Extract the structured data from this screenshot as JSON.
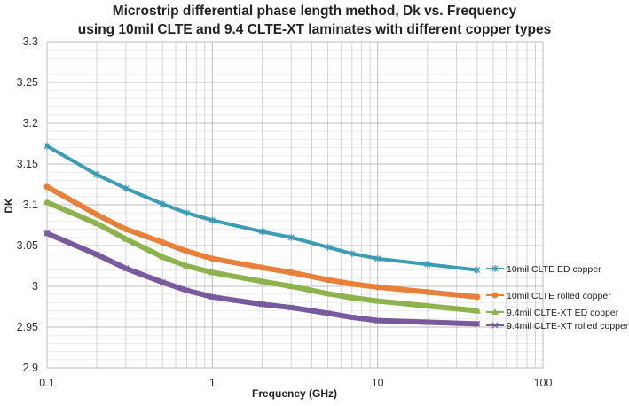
{
  "chart_data": {
    "type": "line",
    "title_line1": "Microstrip differential phase length method, Dk vs. Frequency",
    "title_line2": "using 10mil CLTE and 9.4 CLTE-XT laminates with different copper types",
    "xlabel": "Frequency (GHz)",
    "ylabel": "DK",
    "xscale": "log",
    "xlim": [
      0.1,
      100
    ],
    "ylim": [
      2.9,
      3.3
    ],
    "xticks": [
      "0.1",
      "1",
      "10",
      "100"
    ],
    "yticks": [
      "2.9",
      "2.95",
      "3",
      "3.05",
      "3.1",
      "3.15",
      "3.2",
      "3.25",
      "3.3"
    ],
    "grid": true,
    "legend_position": "right",
    "x": [
      0.1,
      0.2,
      0.3,
      0.5,
      0.7,
      1,
      2,
      3,
      5,
      7,
      10,
      20,
      40
    ],
    "series": [
      {
        "name": "10mil CLTE ED copper",
        "color": "#3a9cb6",
        "marker": "star",
        "values": [
          3.172,
          3.137,
          3.12,
          3.101,
          3.09,
          3.081,
          3.067,
          3.06,
          3.048,
          3.04,
          3.034,
          3.027,
          3.02
        ]
      },
      {
        "name": "10mil CLTE rolled copper",
        "color": "#e8803a",
        "marker": "circle",
        "values": [
          3.122,
          3.088,
          3.07,
          3.054,
          3.043,
          3.034,
          3.023,
          3.017,
          3.008,
          3.003,
          2.999,
          2.993,
          2.987
        ]
      },
      {
        "name": "9.4mil CLTE-XT ED copper",
        "color": "#8db34c",
        "marker": "triangle",
        "values": [
          3.103,
          3.077,
          3.058,
          3.036,
          3.025,
          3.017,
          3.006,
          3.0,
          2.991,
          2.986,
          2.982,
          2.976,
          2.97
        ]
      },
      {
        "name": "9.4mil CLTE-XT rolled copper",
        "color": "#7a5a9e",
        "marker": "x",
        "values": [
          3.065,
          3.039,
          3.022,
          3.005,
          2.995,
          2.987,
          2.978,
          2.974,
          2.967,
          2.962,
          2.958,
          2.956,
          2.954
        ]
      }
    ]
  }
}
